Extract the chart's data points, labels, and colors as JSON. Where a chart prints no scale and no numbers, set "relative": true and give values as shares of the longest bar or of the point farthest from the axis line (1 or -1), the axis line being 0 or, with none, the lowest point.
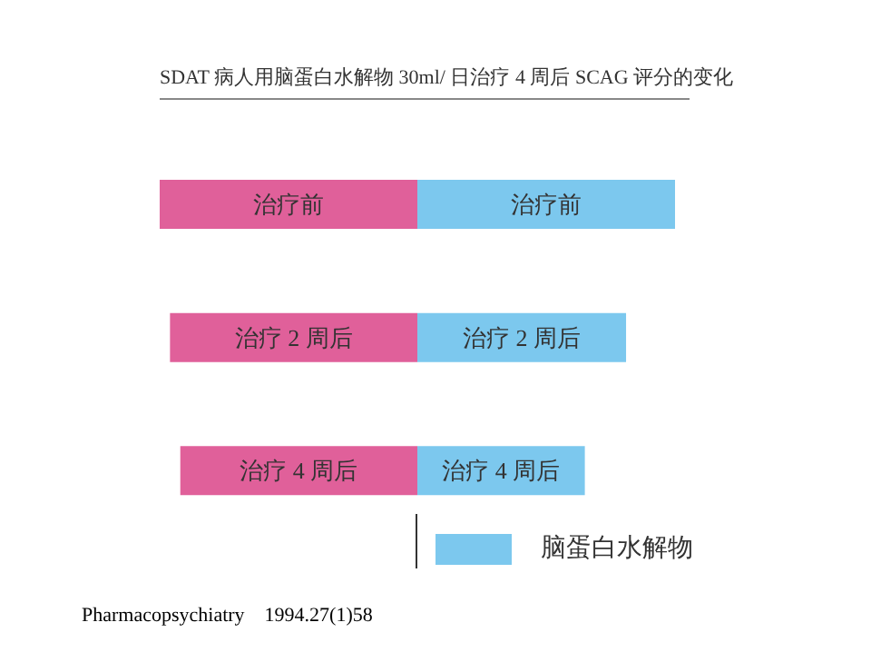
{
  "chart_data": [
    {
      "type": "bar",
      "orientation": "horizontal",
      "relative": true,
      "title": "SDAT 病人用脑蛋白水解物 30ml/ 日治疗 4 周后 SCAG 评分的变化",
      "categories": [
        "治疗前",
        "治疗 2 周后",
        "治疗 4 周后"
      ],
      "series": [
        {
          "color": "#e0609a",
          "values": [
            1,
            0.96,
            0.92
          ]
        }
      ],
      "tick_labels": false,
      "annotations": [
        "Pharmacopsychiatry    1994.27(1)58"
      ]
    },
    {
      "type": "bar",
      "orientation": "horizontal",
      "relative": true,
      "categories": [
        "治疗前",
        "治疗 2 周后",
        "治疗 4 周后"
      ],
      "series": [
        {
          "name": "脑蛋白水解物",
          "color": "#7cc8ee",
          "values": [
            1,
            0.81,
            0.65
          ]
        }
      ],
      "legend": "bottom",
      "tick_labels": false
    }
  ]
}
